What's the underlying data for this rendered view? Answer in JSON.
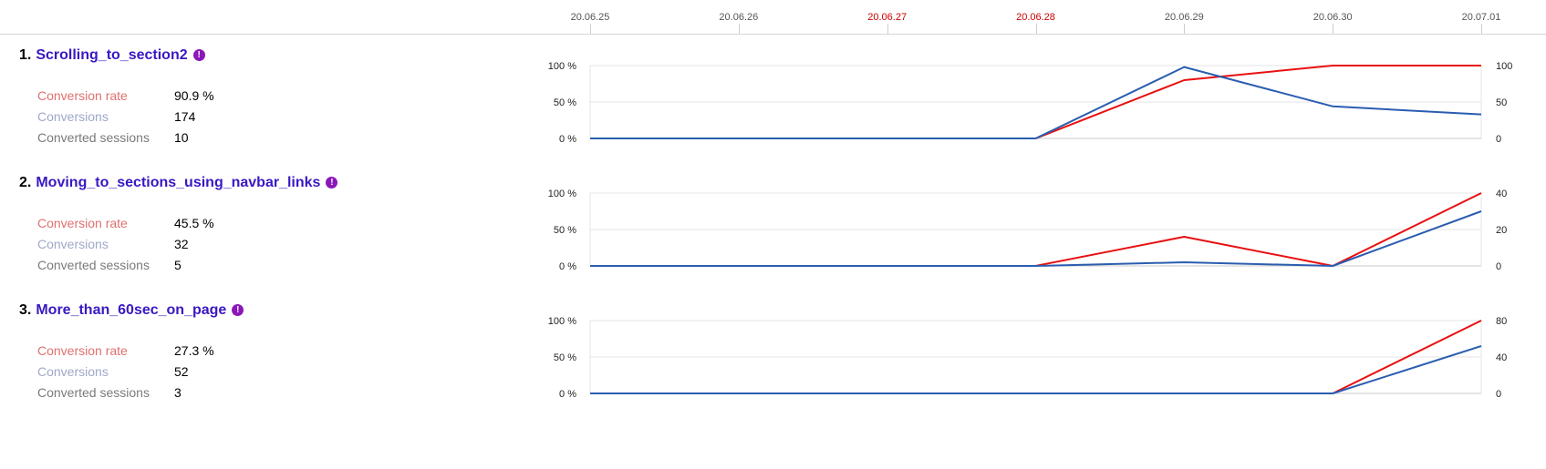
{
  "dates": [
    {
      "label": "20.06.25",
      "weekend": false
    },
    {
      "label": "20.06.26",
      "weekend": false
    },
    {
      "label": "20.06.27",
      "weekend": true
    },
    {
      "label": "20.06.28",
      "weekend": true
    },
    {
      "label": "20.06.29",
      "weekend": false
    },
    {
      "label": "20.06.30",
      "weekend": false
    },
    {
      "label": "20.07.01",
      "weekend": false
    }
  ],
  "colors": {
    "conversion_rate": "#e81010",
    "conversions": "#2a5db0",
    "accent": "#3a18c2"
  },
  "goals": [
    {
      "number": "1.",
      "name": "Scrolling_to_section2",
      "conversion_rate_label": "Conversion rate",
      "conversion_rate": "90.9 %",
      "conversions_label": "Conversions",
      "conversions": "174",
      "sessions_label": "Converted sessions",
      "sessions": "10"
    },
    {
      "number": "2.",
      "name": "Moving_to_sections_using_navbar_links",
      "conversion_rate_label": "Conversion rate",
      "conversion_rate": "45.5 %",
      "conversions_label": "Conversions",
      "conversions": "32",
      "sessions_label": "Converted sessions",
      "sessions": "5"
    },
    {
      "number": "3.",
      "name": "More_than_60sec_on_page",
      "conversion_rate_label": "Conversion rate",
      "conversion_rate": "27.3 %",
      "conversions_label": "Conversions",
      "conversions": "52",
      "sessions_label": "Converted sessions",
      "sessions": "3"
    }
  ],
  "chart_data": [
    {
      "type": "line",
      "x": [
        "20.06.25",
        "20.06.26",
        "20.06.27",
        "20.06.28",
        "20.06.29",
        "20.06.30",
        "20.07.01"
      ],
      "left_axis_ticks": [
        "100 %",
        "50 %",
        "0 %"
      ],
      "left_ylim": [
        0,
        100
      ],
      "right_axis_ticks": [
        "100",
        "50",
        "0"
      ],
      "right_ylim": [
        0,
        100
      ],
      "grid": true,
      "series": [
        {
          "axis": "left",
          "color": "#e81010",
          "values": [
            0,
            0,
            0,
            0,
            80,
            100,
            100
          ]
        },
        {
          "axis": "right",
          "color": "#2a5db0",
          "values": [
            0,
            0,
            0,
            0,
            98,
            44,
            33
          ]
        }
      ]
    },
    {
      "type": "line",
      "x": [
        "20.06.25",
        "20.06.26",
        "20.06.27",
        "20.06.28",
        "20.06.29",
        "20.06.30",
        "20.07.01"
      ],
      "left_axis_ticks": [
        "100 %",
        "50 %",
        "0 %"
      ],
      "left_ylim": [
        0,
        100
      ],
      "right_axis_ticks": [
        "40",
        "20",
        "0"
      ],
      "right_ylim": [
        0,
        40
      ],
      "grid": true,
      "series": [
        {
          "axis": "left",
          "color": "#e81010",
          "values": [
            0,
            0,
            0,
            0,
            40,
            0,
            100
          ]
        },
        {
          "axis": "right",
          "color": "#2a5db0",
          "values": [
            0,
            0,
            0,
            0,
            2,
            0,
            30
          ]
        }
      ]
    },
    {
      "type": "line",
      "x": [
        "20.06.25",
        "20.06.26",
        "20.06.27",
        "20.06.28",
        "20.06.29",
        "20.06.30",
        "20.07.01"
      ],
      "left_axis_ticks": [
        "100 %",
        "50 %",
        "0 %"
      ],
      "left_ylim": [
        0,
        100
      ],
      "right_axis_ticks": [
        "80",
        "40",
        "0"
      ],
      "right_ylim": [
        0,
        80
      ],
      "grid": true,
      "series": [
        {
          "axis": "left",
          "color": "#e81010",
          "values": [
            0,
            0,
            0,
            0,
            0,
            0,
            100
          ]
        },
        {
          "axis": "right",
          "color": "#2a5db0",
          "values": [
            0,
            0,
            0,
            0,
            0,
            0,
            52
          ]
        }
      ]
    }
  ]
}
